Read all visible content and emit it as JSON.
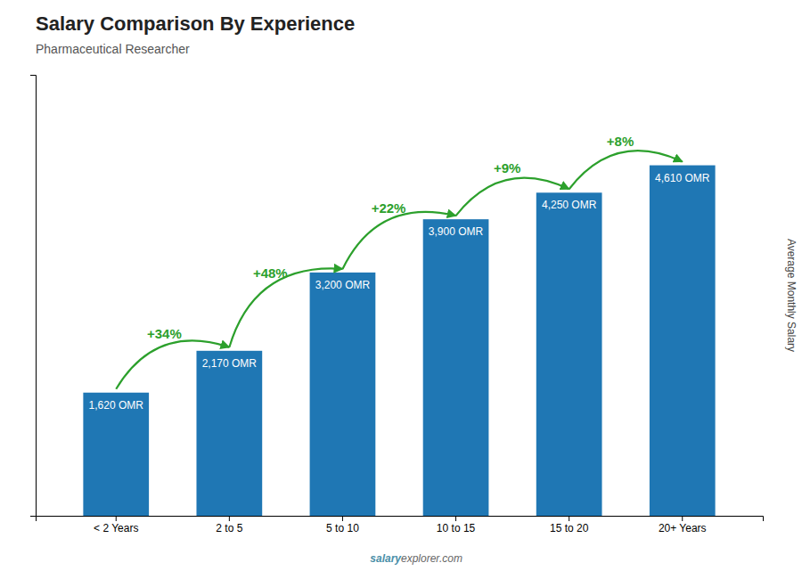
{
  "chart_data": {
    "type": "bar",
    "title": "Salary Comparison By Experience",
    "subtitle": "Pharmaceutical Researcher",
    "ylabel": "Average Monthly Salary",
    "categories": [
      "< 2 Years",
      "2 to 5",
      "5 to 10",
      "10 to 15",
      "15 to 20",
      "20+ Years"
    ],
    "values": [
      1620,
      2170,
      3200,
      3900,
      4250,
      4610
    ],
    "value_labels": [
      "1,620 OMR",
      "2,170 OMR",
      "3,200 OMR",
      "3,900 OMR",
      "4,250 OMR",
      "4,610 OMR"
    ],
    "data_labels": true,
    "annotations": [
      "+34%",
      "+48%",
      "+22%",
      "+9%",
      "+8%"
    ],
    "watermark": [
      "salary",
      "explorer.com"
    ],
    "ylim": [
      0,
      5800
    ],
    "yticks": [],
    "tick_labels": "x"
  }
}
